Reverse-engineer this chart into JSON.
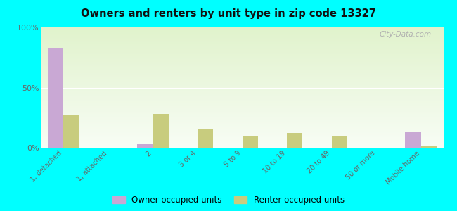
{
  "title": "Owners and renters by unit type in zip code 13327",
  "categories": [
    "1, detached",
    "1, attached",
    "2",
    "3 or 4",
    "5 to 9",
    "10 to 19",
    "20 to 49",
    "50 or more",
    "Mobile home"
  ],
  "owner_values": [
    83,
    0,
    3,
    0,
    0,
    0,
    0,
    0,
    13
  ],
  "renter_values": [
    27,
    0,
    28,
    15,
    10,
    12,
    10,
    0,
    2
  ],
  "owner_color": "#c9a8d4",
  "renter_color": "#c8cc7e",
  "ylim": [
    0,
    100
  ],
  "yticks": [
    0,
    50,
    100
  ],
  "ytick_labels": [
    "0%",
    "50%",
    "100%"
  ],
  "legend_owner": "Owner occupied units",
  "legend_renter": "Renter occupied units",
  "bar_width": 0.35,
  "bg_color": "#00ffff"
}
